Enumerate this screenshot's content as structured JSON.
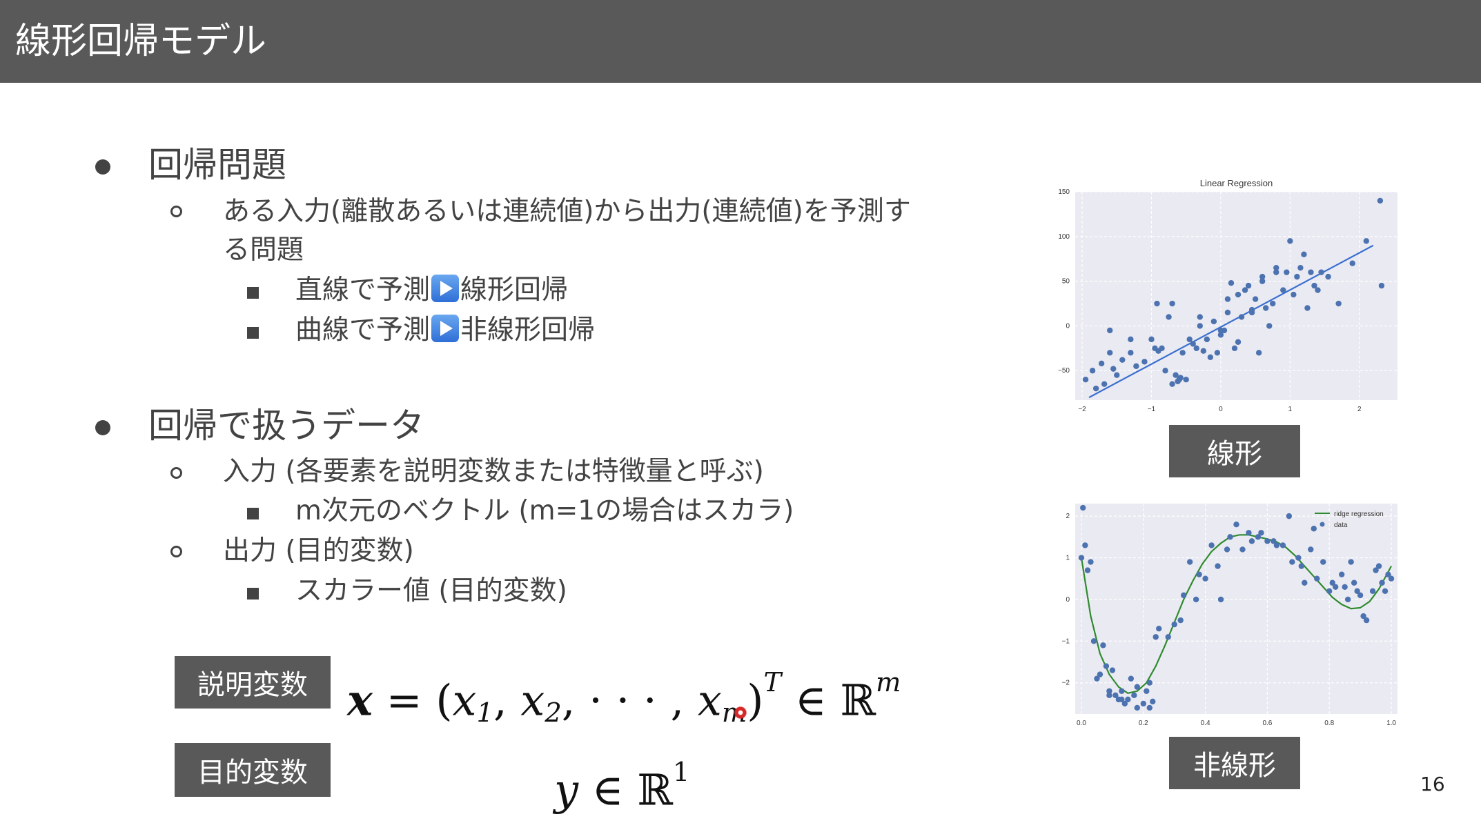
{
  "slide": {
    "title": "線形回帰モデル",
    "page_number": "16"
  },
  "bullets": {
    "b1": "回帰問題",
    "b1_1_line1": "ある入力(離散あるいは連続値)から出力(連続値)を予測す",
    "b1_1_line2": "る問題",
    "b1_1_1_pre": "直線で予測",
    "b1_1_1_post": "線形回帰",
    "b1_1_2_pre": "曲線で予測",
    "b1_1_2_post": "非線形回帰",
    "b2": "回帰で扱うデータ",
    "b2_1": "入力 (各要素を説明変数または特徴量と呼ぶ)",
    "b2_1_1": "m次元のベクトル (m=1の場合はスカラ)",
    "b2_2": "出力 (目的変数)",
    "b2_2_1": "スカラー値 (目的変数)",
    "play_icon": "play-button-icon"
  },
  "labels": {
    "explanatory": "説明変数",
    "objective": "目的変数",
    "linear": "線形",
    "nonlinear": "非線形"
  },
  "formulas": {
    "x_bold": "x",
    "equals": " = (",
    "x1": "x",
    "sub1": "1",
    "comma1": ", ",
    "x2": "x",
    "sub2": "2",
    "dots": ", · · · , ",
    "xm": "x",
    "subm": "m",
    "close": ")",
    "supT": "T",
    "in1": " ∈ ℝ",
    "supm": "m",
    "y": "y",
    "in2": " ∈ ℝ",
    "sup1": "1"
  },
  "chart_data": [
    {
      "type": "scatter",
      "title": "Linear Regression",
      "xlabel": "",
      "ylabel": "",
      "xlim": [
        -2.1,
        2.55
      ],
      "ylim": [
        -83,
        150
      ],
      "xticks": [
        -2,
        -1,
        0,
        1,
        2
      ],
      "yticks": [
        150,
        100,
        50,
        0,
        -50
      ],
      "grid": true,
      "colors": {
        "points": "#4c72b0",
        "line": "#3a6fd0",
        "background": "#eaeaf2",
        "grid": "#ffffff"
      },
      "series": [
        {
          "kind": "points",
          "x": [
            -1.95,
            -1.85,
            -1.8,
            -1.72,
            -1.68,
            -1.6,
            -1.55,
            -1.5,
            -1.42,
            -1.3,
            -1.22,
            -1.1,
            -1.0,
            -0.92,
            -0.85,
            -0.8,
            -0.75,
            -0.7,
            -0.65,
            -0.62,
            -0.58,
            -0.55,
            -0.5,
            -0.45,
            -0.4,
            -0.35,
            -0.3,
            -0.25,
            -0.2,
            -0.15,
            -0.1,
            -0.05,
            0.0,
            0.05,
            0.1,
            0.15,
            0.2,
            0.25,
            0.3,
            0.35,
            0.4,
            0.45,
            0.5,
            0.55,
            0.6,
            0.65,
            0.7,
            0.75,
            0.8,
            0.9,
            0.95,
            1.0,
            1.05,
            1.1,
            1.15,
            1.2,
            1.25,
            1.3,
            1.35,
            1.45,
            1.55,
            1.7,
            1.9,
            2.1,
            2.3,
            2.32,
            -0.6,
            -0.7,
            0.25,
            0.45,
            -1.6,
            -0.9,
            0.1,
            0.6,
            1.4,
            0.8,
            -0.3,
            0.0,
            -1.3,
            -0.95
          ],
          "y": [
            -60,
            -50,
            -70,
            -42,
            -65,
            -5,
            -48,
            -55,
            -38,
            -30,
            -45,
            -40,
            -15,
            25,
            -25,
            -50,
            10,
            25,
            -55,
            -62,
            -58,
            -30,
            -60,
            -15,
            -20,
            -25,
            10,
            -28,
            -15,
            -35,
            5,
            -30,
            -10,
            -5,
            15,
            48,
            -25,
            35,
            10,
            40,
            45,
            15,
            30,
            -30,
            50,
            20,
            0,
            25,
            60,
            40,
            60,
            95,
            35,
            55,
            65,
            80,
            20,
            60,
            45,
            60,
            55,
            25,
            70,
            95,
            140,
            45,
            -60,
            -65,
            -18,
            18,
            -30,
            -28,
            30,
            55,
            40,
            65,
            0,
            -5,
            -15,
            -25
          ]
        },
        {
          "kind": "line",
          "name": "",
          "x": [
            -1.9,
            2.2
          ],
          "y": [
            -80,
            90
          ]
        }
      ]
    },
    {
      "type": "scatter",
      "title": "",
      "xlabel": "",
      "ylabel": "",
      "xlim": [
        -0.02,
        1.02
      ],
      "ylim": [
        -2.75,
        2.3
      ],
      "xticks": [
        0.0,
        0.2,
        0.4,
        0.6,
        0.8,
        1.0
      ],
      "yticks": [
        2,
        1,
        0,
        -1,
        -2
      ],
      "grid": true,
      "legend": {
        "position": "top-right",
        "entries": [
          "ridge regression",
          "data"
        ]
      },
      "colors": {
        "points": "#4c72b0",
        "line": "#2e8b2e",
        "background": "#eaeaf2",
        "grid": "#ffffff"
      },
      "series": [
        {
          "kind": "points",
          "name": "data",
          "x": [
            0.0,
            0.005,
            0.012,
            0.02,
            0.04,
            0.05,
            0.07,
            0.08,
            0.09,
            0.1,
            0.11,
            0.12,
            0.13,
            0.14,
            0.15,
            0.16,
            0.17,
            0.18,
            0.2,
            0.21,
            0.22,
            0.23,
            0.24,
            0.25,
            0.28,
            0.3,
            0.32,
            0.33,
            0.35,
            0.37,
            0.38,
            0.4,
            0.42,
            0.44,
            0.45,
            0.47,
            0.48,
            0.5,
            0.52,
            0.54,
            0.55,
            0.57,
            0.58,
            0.6,
            0.62,
            0.63,
            0.65,
            0.67,
            0.68,
            0.7,
            0.71,
            0.72,
            0.74,
            0.75,
            0.76,
            0.78,
            0.8,
            0.81,
            0.82,
            0.84,
            0.85,
            0.86,
            0.87,
            0.88,
            0.89,
            0.9,
            0.91,
            0.92,
            0.94,
            0.95,
            0.96,
            0.97,
            0.98,
            0.99,
            1.0,
            0.09,
            0.13,
            0.18,
            0.22,
            0.06,
            0.03
          ],
          "y": [
            1.0,
            2.2,
            1.3,
            0.7,
            -1.0,
            -1.9,
            -1.1,
            -1.6,
            -2.2,
            -1.7,
            -2.3,
            -2.4,
            -2.2,
            -2.5,
            -2.4,
            -1.9,
            -2.3,
            -2.6,
            -2.5,
            -2.2,
            -2.6,
            -2.45,
            -0.9,
            -0.7,
            -0.9,
            -0.6,
            -0.5,
            0.1,
            0.9,
            0.0,
            0.6,
            0.5,
            1.3,
            0.8,
            0.0,
            1.2,
            1.5,
            1.8,
            1.2,
            1.6,
            1.4,
            1.5,
            1.6,
            1.4,
            1.4,
            1.3,
            1.3,
            2.0,
            0.9,
            1.0,
            0.8,
            0.4,
            1.2,
            1.7,
            0.5,
            0.9,
            0.2,
            0.4,
            0.3,
            0.6,
            0.3,
            0.0,
            0.9,
            0.4,
            0.2,
            0.1,
            -0.4,
            -0.5,
            0.2,
            0.7,
            0.8,
            0.4,
            0.2,
            0.6,
            0.5,
            -2.3,
            -2.4,
            -2.1,
            -2.0,
            -1.8,
            0.9
          ]
        },
        {
          "kind": "line",
          "name": "ridge regression",
          "x": [
            0.0,
            0.03,
            0.06,
            0.09,
            0.12,
            0.15,
            0.18,
            0.21,
            0.24,
            0.27,
            0.3,
            0.33,
            0.36,
            0.39,
            0.42,
            0.45,
            0.48,
            0.51,
            0.54,
            0.57,
            0.6,
            0.63,
            0.66,
            0.69,
            0.72,
            0.75,
            0.78,
            0.81,
            0.84,
            0.87,
            0.9,
            0.93,
            0.96,
            1.0
          ],
          "y": [
            1.0,
            -0.4,
            -1.3,
            -1.8,
            -2.1,
            -2.25,
            -2.2,
            -2.0,
            -1.6,
            -1.1,
            -0.55,
            0.0,
            0.45,
            0.85,
            1.15,
            1.35,
            1.5,
            1.55,
            1.55,
            1.5,
            1.45,
            1.38,
            1.25,
            1.05,
            0.8,
            0.55,
            0.3,
            0.05,
            -0.12,
            -0.22,
            -0.2,
            -0.05,
            0.25,
            0.8
          ]
        }
      ]
    }
  ]
}
